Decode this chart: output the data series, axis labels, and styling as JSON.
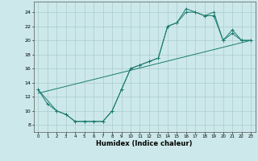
{
  "xlabel": "Humidex (Indice chaleur)",
  "bg_color": "#cce8ea",
  "line_color": "#1a7a6e",
  "grid_color": "#aacccc",
  "xlim": [
    -0.5,
    23.5
  ],
  "ylim": [
    7,
    25.5
  ],
  "xticks": [
    0,
    1,
    2,
    3,
    4,
    5,
    6,
    7,
    8,
    9,
    10,
    11,
    12,
    13,
    14,
    15,
    16,
    17,
    18,
    19,
    20,
    21,
    22,
    23
  ],
  "yticks": [
    8,
    10,
    12,
    14,
    16,
    18,
    20,
    22,
    24
  ],
  "line1_x": [
    0,
    1,
    2,
    3,
    4,
    5,
    6,
    7,
    8,
    9,
    10,
    11,
    12,
    13,
    14,
    15,
    16,
    17,
    18,
    19,
    20,
    21,
    22,
    23
  ],
  "line1_y": [
    13,
    11,
    10,
    9.5,
    8.5,
    8.5,
    8.5,
    8.5,
    10,
    13,
    16,
    16.5,
    17,
    17.5,
    22,
    22.5,
    24.5,
    24,
    23.5,
    24,
    20,
    21.5,
    20,
    20
  ],
  "line2_x": [
    0,
    2,
    3,
    4,
    5,
    6,
    7,
    8,
    9,
    10,
    11,
    12,
    13,
    14,
    15,
    16,
    17,
    18,
    19,
    20,
    21,
    22,
    23
  ],
  "line2_y": [
    13,
    10,
    9.5,
    8.5,
    8.5,
    8.5,
    8.5,
    10,
    13,
    16,
    16.5,
    17,
    17.5,
    22,
    22.5,
    24,
    24,
    23.5,
    23.5,
    20,
    21,
    20,
    20
  ],
  "line3_x": [
    0,
    23
  ],
  "line3_y": [
    12.5,
    20
  ]
}
